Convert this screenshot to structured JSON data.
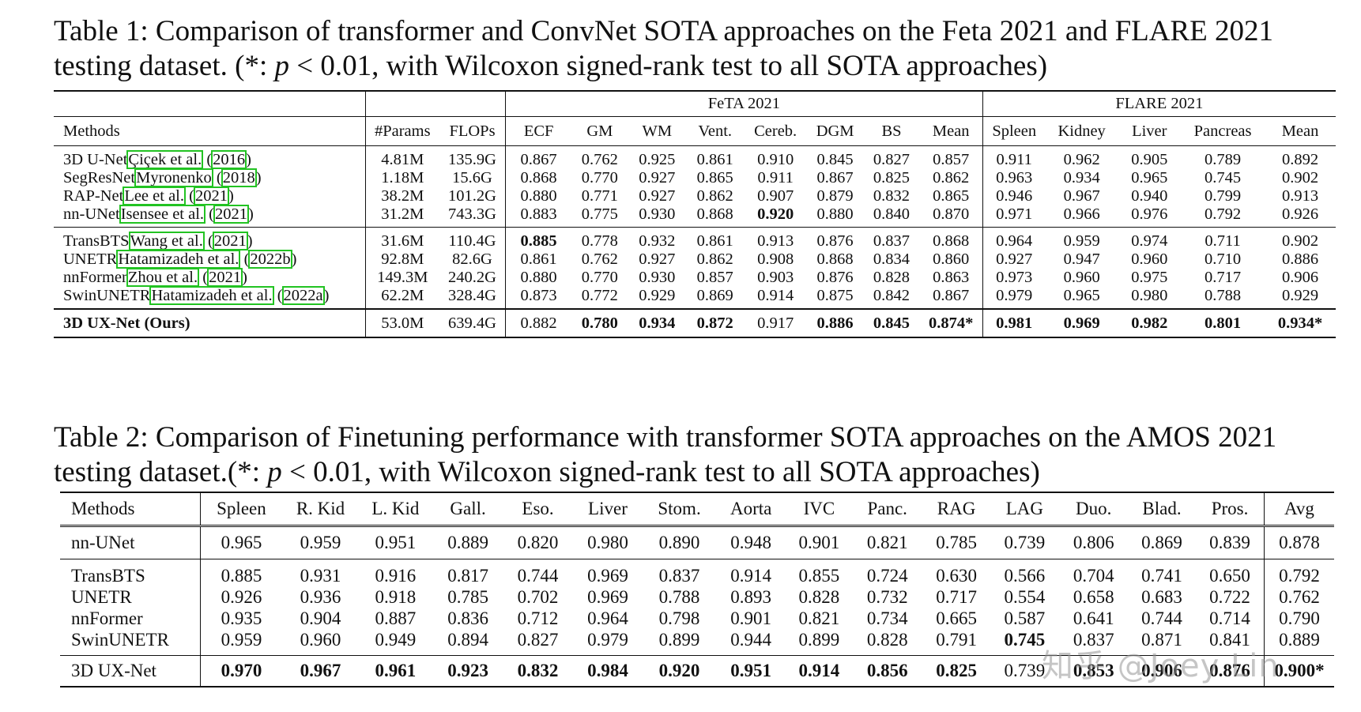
{
  "table1": {
    "caption": {
      "prefix": "Table 1: Comparison of transformer and ConvNet SOTA approaches on the Feta 2021 and FLARE 2021 testing dataset. (*: ",
      "p": "p",
      "cond": " < 0.01, with Wilcoxon signed-rank test to all SOTA approaches)"
    },
    "groups": {
      "feta": "FeTA 2021",
      "flare": "FLARE 2021"
    },
    "headers": [
      "Methods",
      "#Params",
      "FLOPs",
      "ECF",
      "GM",
      "WM",
      "Vent.",
      "Cereb.",
      "DGM",
      "BS",
      "Mean",
      "Spleen",
      "Kidney",
      "Liver",
      "Pancreas",
      "Mean"
    ],
    "rows": [
      {
        "name": "3D U-Net",
        "cite_a": "Çiçek et al.",
        "cite_mid": " (",
        "cite_b": "2016",
        "cite_end": ")",
        "cells": [
          "4.81M",
          "135.9G",
          "0.867",
          "0.762",
          "0.925",
          "0.861",
          "0.910",
          "0.845",
          "0.827",
          "0.857",
          "0.911",
          "0.962",
          "0.905",
          "0.789",
          "0.892"
        ]
      },
      {
        "name": "SegResNet",
        "cite_a": "Myronenko",
        "cite_mid": " (",
        "cite_b": "2018",
        "cite_end": ")",
        "cells": [
          "1.18M",
          "15.6G",
          "0.868",
          "0.770",
          "0.927",
          "0.865",
          "0.911",
          "0.867",
          "0.825",
          "0.862",
          "0.963",
          "0.934",
          "0.965",
          "0.745",
          "0.902"
        ]
      },
      {
        "name": "RAP-Net",
        "cite_a": "Lee et al.",
        "cite_mid": " (",
        "cite_b": "2021",
        "cite_end": ")",
        "cells": [
          "38.2M",
          "101.2G",
          "0.880",
          "0.771",
          "0.927",
          "0.862",
          "0.907",
          "0.879",
          "0.832",
          "0.865",
          "0.946",
          "0.967",
          "0.940",
          "0.799",
          "0.913"
        ]
      },
      {
        "name": "nn-UNet",
        "cite_a": "Isensee et al.",
        "cite_mid": " (",
        "cite_b": "2021",
        "cite_end": ")",
        "cells": [
          "31.2M",
          "743.3G",
          "0.883",
          "0.775",
          "0.930",
          "0.868",
          "0.920",
          "0.880",
          "0.840",
          "0.870",
          "0.971",
          "0.966",
          "0.976",
          "0.792",
          "0.926"
        ]
      },
      {
        "name": "TransBTS",
        "cite_a": "Wang et al.",
        "cite_mid": " (",
        "cite_b": "2021",
        "cite_end": ")",
        "cells": [
          "31.6M",
          "110.4G",
          "0.885",
          "0.778",
          "0.932",
          "0.861",
          "0.913",
          "0.876",
          "0.837",
          "0.868",
          "0.964",
          "0.959",
          "0.974",
          "0.711",
          "0.902"
        ]
      },
      {
        "name": "UNETR",
        "cite_a": "Hatamizadeh et al.",
        "cite_mid": " (",
        "cite_b": "2022b",
        "cite_end": ")",
        "cells": [
          "92.8M",
          "82.6G",
          "0.861",
          "0.762",
          "0.927",
          "0.862",
          "0.908",
          "0.868",
          "0.834",
          "0.860",
          "0.927",
          "0.947",
          "0.960",
          "0.710",
          "0.886"
        ]
      },
      {
        "name": "nnFormer",
        "cite_a": "Zhou et al.",
        "cite_mid": " (",
        "cite_b": "2021",
        "cite_end": ")",
        "cells": [
          "149.3M",
          "240.2G",
          "0.880",
          "0.770",
          "0.930",
          "0.857",
          "0.903",
          "0.876",
          "0.828",
          "0.863",
          "0.973",
          "0.960",
          "0.975",
          "0.717",
          "0.906"
        ]
      },
      {
        "name": "SwinUNETR",
        "cite_a": "Hatamizadeh et al.",
        "cite_mid": " (",
        "cite_b": "2022a",
        "cite_end": ")",
        "cells": [
          "62.2M",
          "328.4G",
          "0.873",
          "0.772",
          "0.929",
          "0.869",
          "0.914",
          "0.875",
          "0.842",
          "0.867",
          "0.979",
          "0.965",
          "0.980",
          "0.788",
          "0.929"
        ]
      }
    ],
    "ours": {
      "name": "3D UX-Net (Ours)",
      "cells": [
        "53.0M",
        "639.4G",
        "0.882",
        "0.780",
        "0.934",
        "0.872",
        "0.917",
        "0.886",
        "0.845",
        "0.874*",
        "0.981",
        "0.969",
        "0.982",
        "0.801",
        "0.934*"
      ]
    }
  },
  "table2": {
    "caption": {
      "prefix": "Table 2: Comparison of Finetuning performance with transformer SOTA approaches on the AMOS 2021 testing dataset.(*: ",
      "p": "p",
      "cond": " < 0.01, with Wilcoxon signed-rank test to all SOTA approaches)"
    },
    "headers": [
      "Methods",
      "Spleen",
      "R. Kid",
      "L. Kid",
      "Gall.",
      "Eso.",
      "Liver",
      "Stom.",
      "Aorta",
      "IVC",
      "Panc.",
      "RAG",
      "LAG",
      "Duo.",
      "Blad.",
      "Pros.",
      "Avg"
    ],
    "nnunet": {
      "name": "nn-UNet",
      "cells": [
        "0.965",
        "0.959",
        "0.951",
        "0.889",
        "0.820",
        "0.980",
        "0.890",
        "0.948",
        "0.901",
        "0.821",
        "0.785",
        "0.739",
        "0.806",
        "0.869",
        "0.839",
        "0.878"
      ]
    },
    "rows": [
      {
        "name": "TransBTS",
        "cells": [
          "0.885",
          "0.931",
          "0.916",
          "0.817",
          "0.744",
          "0.969",
          "0.837",
          "0.914",
          "0.855",
          "0.724",
          "0.630",
          "0.566",
          "0.704",
          "0.741",
          "0.650",
          "0.792"
        ]
      },
      {
        "name": "UNETR",
        "cells": [
          "0.926",
          "0.936",
          "0.918",
          "0.785",
          "0.702",
          "0.969",
          "0.788",
          "0.893",
          "0.828",
          "0.732",
          "0.717",
          "0.554",
          "0.658",
          "0.683",
          "0.722",
          "0.762"
        ]
      },
      {
        "name": "nnFormer",
        "cells": [
          "0.935",
          "0.904",
          "0.887",
          "0.836",
          "0.712",
          "0.964",
          "0.798",
          "0.901",
          "0.821",
          "0.734",
          "0.665",
          "0.587",
          "0.641",
          "0.744",
          "0.714",
          "0.790"
        ]
      },
      {
        "name": "SwinUNETR",
        "cells": [
          "0.959",
          "0.960",
          "0.949",
          "0.894",
          "0.827",
          "0.979",
          "0.899",
          "0.944",
          "0.899",
          "0.828",
          "0.791",
          "0.745",
          "0.837",
          "0.871",
          "0.841",
          "0.889"
        ]
      }
    ],
    "ours": {
      "name": "3D UX-Net",
      "cells": [
        "0.970",
        "0.967",
        "0.961",
        "0.923",
        "0.832",
        "0.984",
        "0.920",
        "0.951",
        "0.914",
        "0.856",
        "0.825",
        "0.739",
        "0.853",
        "0.906",
        "0.876",
        "0.900*"
      ]
    }
  },
  "watermark": "知乎 @Joey Lin"
}
